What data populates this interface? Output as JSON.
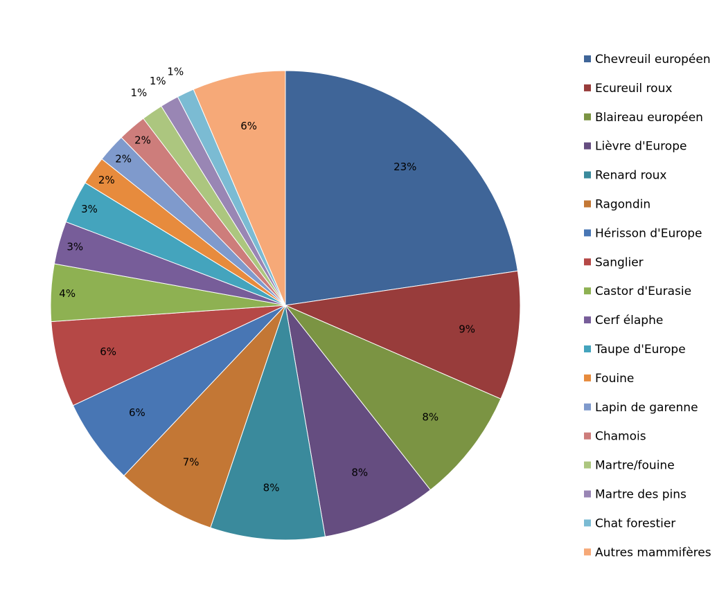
{
  "chart_data": {
    "type": "pie",
    "legend_position": "right",
    "slices": [
      {
        "label": "Chevreuil européen",
        "value": 23,
        "value_label": "23%",
        "color": "#3F6598"
      },
      {
        "label": "Ecureuil roux",
        "value": 9,
        "value_label": "9%",
        "color": "#983C3B"
      },
      {
        "label": "Blaireau européen",
        "value": 8,
        "value_label": "8%",
        "color": "#7B9443"
      },
      {
        "label": "Lièvre d'Europe",
        "value": 8,
        "value_label": "8%",
        "color": "#654D80"
      },
      {
        "label": "Renard roux",
        "value": 8,
        "value_label": "8%",
        "color": "#3A8A9C"
      },
      {
        "label": "Ragondin",
        "value": 7,
        "value_label": "7%",
        "color": "#C37735"
      },
      {
        "label": "Hérisson d'Europe",
        "value": 6,
        "value_label": "6%",
        "color": "#4876B4"
      },
      {
        "label": "Sanglier",
        "value": 6,
        "value_label": "6%",
        "color": "#B54846"
      },
      {
        "label": "Castor d'Eurasie",
        "value": 4,
        "value_label": "4%",
        "color": "#8EB152"
      },
      {
        "label": "Cerf élaphe",
        "value": 3,
        "value_label": "3%",
        "color": "#775D99"
      },
      {
        "label": "Taupe d'Europe",
        "value": 3,
        "value_label": "3%",
        "color": "#44A4BD"
      },
      {
        "label": "Fouine",
        "value": 2,
        "value_label": "2%",
        "color": "#E78B3D"
      },
      {
        "label": "Lapin de garenne",
        "value": 2,
        "value_label": "2%",
        "color": "#7F9ACC"
      },
      {
        "label": "Chamois",
        "value": 2,
        "value_label": "2%",
        "color": "#CD7D7B"
      },
      {
        "label": "Martre/fouine",
        "value": 1.5,
        "value_label": "1%",
        "color": "#ACC67F"
      },
      {
        "label": "Martre des pins",
        "value": 1.3,
        "value_label": "1%",
        "color": "#9986B4"
      },
      {
        "label": "Chat forestier",
        "value": 1.2,
        "value_label": "1%",
        "color": "#7BBBD3"
      },
      {
        "label": "Autres mammifères",
        "value": 6.5,
        "value_label": "6%",
        "color": "#F6A978"
      }
    ]
  }
}
